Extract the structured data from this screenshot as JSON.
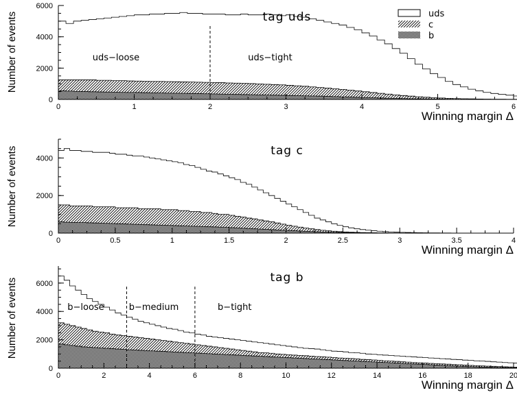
{
  "chart_data": [
    {
      "type": "bar",
      "title": "tag uds",
      "xlabel": "Winning margin Δ",
      "ylabel": "Number of events",
      "xlim": [
        0,
        6
      ],
      "ylim": [
        0,
        6000
      ],
      "xticks": [
        0,
        1,
        2,
        3,
        4,
        5,
        6
      ],
      "yticks": [
        0,
        2000,
        4000,
        6000
      ],
      "grid": false,
      "legend_position": "top-right",
      "legend": [
        "uds",
        "c",
        "b"
      ],
      "bin_width": 0.1,
      "cut_lines": [
        2.0
      ],
      "annotations": [
        {
          "text": "uds−loose",
          "x": 0.45,
          "y": 2700
        },
        {
          "text": "uds−tight",
          "x": 2.5,
          "y": 2700
        }
      ],
      "series": [
        {
          "name": "uds",
          "values": [
            5000,
            4850,
            5000,
            5050,
            5100,
            5150,
            5200,
            5250,
            5300,
            5350,
            5400,
            5400,
            5450,
            5450,
            5500,
            5500,
            5550,
            5500,
            5500,
            5450,
            5450,
            5450,
            5400,
            5400,
            5450,
            5400,
            5400,
            5450,
            5400,
            5350,
            5400,
            5300,
            5250,
            5150,
            5050,
            4950,
            4850,
            4750,
            4600,
            4450,
            4250,
            4050,
            3800,
            3550,
            3250,
            2950,
            2600,
            2250,
            1950,
            1650,
            1400,
            1150,
            950,
            800,
            650,
            550,
            450,
            380,
            320,
            270,
            220,
            180,
            150,
            130,
            110,
            95,
            80,
            70,
            60,
            50,
            45,
            40,
            35,
            30,
            25,
            20,
            18,
            15,
            12,
            10
          ]
        },
        {
          "name": "c",
          "values": [
            1250,
            1250,
            1250,
            1250,
            1250,
            1220,
            1220,
            1200,
            1200,
            1180,
            1170,
            1160,
            1150,
            1150,
            1140,
            1130,
            1120,
            1110,
            1100,
            1090,
            1080,
            1070,
            1050,
            1040,
            1030,
            1010,
            990,
            970,
            950,
            930,
            900,
            870,
            840,
            800,
            760,
            720,
            680,
            640,
            590,
            540,
            490,
            440,
            390,
            340,
            290,
            250,
            210,
            170,
            140,
            110,
            90,
            70,
            55,
            45,
            35,
            28,
            22,
            18,
            14,
            11,
            9,
            7,
            5,
            4,
            3,
            2,
            2,
            1,
            1,
            1
          ]
        },
        {
          "name": "b",
          "values": [
            550,
            530,
            510,
            500,
            490,
            480,
            470,
            460,
            450,
            445,
            440,
            430,
            420,
            410,
            400,
            395,
            390,
            380,
            370,
            360,
            350,
            340,
            330,
            320,
            310,
            300,
            290,
            280,
            270,
            260,
            250,
            240,
            230,
            220,
            210,
            195,
            180,
            165,
            150,
            135,
            120,
            105,
            90,
            78,
            66,
            55,
            45,
            37,
            30,
            24,
            19,
            15,
            12,
            9,
            7,
            5,
            4,
            3,
            2,
            2,
            1,
            1,
            1
          ]
        }
      ]
    },
    {
      "type": "bar",
      "title": "tag c",
      "xlabel": "Winning margin Δ",
      "ylabel": "Number of events",
      "xlim": [
        0,
        4
      ],
      "ylim": [
        0,
        5000
      ],
      "xticks": [
        0,
        0.5,
        1,
        1.5,
        2,
        2.5,
        3,
        3.5,
        4
      ],
      "yticks": [
        0,
        2000,
        4000
      ],
      "grid": false,
      "bin_width": 0.05,
      "series": [
        {
          "name": "uds",
          "values": [
            4400,
            4500,
            4400,
            4400,
            4350,
            4350,
            4300,
            4300,
            4300,
            4250,
            4200,
            4200,
            4150,
            4100,
            4100,
            4050,
            4000,
            3950,
            3900,
            3850,
            3800,
            3750,
            3650,
            3600,
            3500,
            3400,
            3300,
            3250,
            3150,
            3050,
            2950,
            2850,
            2700,
            2600,
            2450,
            2300,
            2150,
            2000,
            1850,
            1700,
            1550,
            1400,
            1250,
            1100,
            950,
            800,
            700,
            600,
            500,
            410,
            340,
            280,
            230,
            190,
            155,
            125,
            100,
            80,
            65,
            52,
            42,
            34,
            27,
            22,
            18,
            14,
            11,
            9,
            7,
            5,
            4,
            3,
            2,
            2,
            1,
            1,
            1,
            1,
            0,
            0
          ]
        },
        {
          "name": "c",
          "values": [
            1500,
            1500,
            1450,
            1450,
            1450,
            1450,
            1400,
            1400,
            1400,
            1400,
            1350,
            1350,
            1350,
            1350,
            1300,
            1300,
            1300,
            1300,
            1250,
            1250,
            1250,
            1200,
            1200,
            1150,
            1150,
            1100,
            1100,
            1050,
            1000,
            1000,
            950,
            900,
            850,
            800,
            760,
            700,
            650,
            600,
            540,
            480,
            420,
            370,
            320,
            270,
            230,
            190,
            150,
            120,
            100,
            80,
            65,
            50,
            40,
            32,
            25,
            20,
            15,
            12,
            9,
            7,
            5,
            4,
            3,
            2,
            2,
            1,
            1,
            1
          ]
        },
        {
          "name": "b",
          "values": [
            600,
            580,
            570,
            560,
            560,
            550,
            540,
            530,
            520,
            510,
            500,
            490,
            480,
            470,
            460,
            450,
            440,
            430,
            420,
            410,
            400,
            390,
            380,
            370,
            360,
            350,
            340,
            330,
            320,
            305,
            290,
            275,
            260,
            245,
            230,
            215,
            200,
            185,
            170,
            155,
            140,
            125,
            110,
            95,
            82,
            70,
            60,
            50,
            42,
            35,
            29,
            24,
            20,
            16,
            13,
            10,
            8,
            6,
            5,
            4,
            3,
            2,
            2,
            1,
            1
          ]
        }
      ]
    },
    {
      "type": "bar",
      "title": "tag b",
      "xlabel": "Winning margin Δ",
      "ylabel": "Number of events",
      "xlim": [
        0,
        20
      ],
      "ylim": [
        0,
        7200
      ],
      "xticks": [
        0,
        2,
        4,
        6,
        8,
        10,
        12,
        14,
        16,
        18,
        20
      ],
      "yticks": [
        0,
        2000,
        4000,
        6000
      ],
      "grid": false,
      "bin_width": 0.25,
      "cut_lines": [
        3,
        6
      ],
      "annotations": [
        {
          "text": "b−loose",
          "x": 0.4,
          "y": 4200
        },
        {
          "text": "b−medium",
          "x": 3.1,
          "y": 4200
        },
        {
          "text": "b−tight",
          "x": 7,
          "y": 4200
        }
      ],
      "series": [
        {
          "name": "uds",
          "values": [
            6500,
            6200,
            5800,
            5500,
            5200,
            4900,
            4700,
            4500,
            4300,
            4100,
            3900,
            3750,
            3600,
            3450,
            3300,
            3200,
            3100,
            3000,
            2900,
            2800,
            2750,
            2650,
            2550,
            2500,
            2400,
            2350,
            2250,
            2200,
            2150,
            2100,
            2050,
            2000,
            1950,
            1900,
            1850,
            1800,
            1750,
            1700,
            1650,
            1600,
            1550,
            1500,
            1450,
            1400,
            1380,
            1350,
            1300,
            1250,
            1200,
            1180,
            1150,
            1100,
            1080,
            1050,
            1000,
            980,
            950,
            920,
            900,
            870,
            850,
            820,
            800,
            770,
            750,
            720,
            700,
            670,
            650,
            620,
            600,
            570,
            550,
            520,
            500,
            480,
            450,
            430,
            400,
            380,
            360,
            340,
            320,
            300,
            280,
            260,
            240,
            220,
            200,
            180,
            160,
            140,
            120,
            100,
            80,
            65,
            50,
            40,
            30,
            20
          ]
        },
        {
          "name": "c",
          "values": [
            3200,
            3100,
            3000,
            2900,
            2800,
            2700,
            2600,
            2550,
            2500,
            2400,
            2350,
            2300,
            2250,
            2200,
            2150,
            2100,
            2050,
            2000,
            1950,
            1900,
            1850,
            1800,
            1750,
            1700,
            1650,
            1600,
            1550,
            1500,
            1450,
            1400,
            1350,
            1300,
            1250,
            1200,
            1150,
            1100,
            1080,
            1050,
            1000,
            980,
            950,
            920,
            900,
            880,
            850,
            820,
            800,
            780,
            750,
            720,
            700,
            680,
            650,
            620,
            600,
            580,
            550,
            520,
            500,
            480,
            450,
            430,
            400,
            380,
            360,
            340,
            320,
            300,
            280,
            260,
            240,
            220,
            200,
            180,
            160,
            145,
            130,
            115,
            100,
            90,
            80,
            70,
            60,
            50,
            42,
            35,
            28,
            22,
            17,
            13,
            10,
            7,
            5,
            4,
            3,
            2,
            1,
            1,
            0,
            0
          ]
        },
        {
          "name": "b",
          "values": [
            1700,
            1650,
            1600,
            1550,
            1500,
            1480,
            1450,
            1420,
            1400,
            1380,
            1350,
            1330,
            1300,
            1280,
            1260,
            1240,
            1220,
            1200,
            1180,
            1160,
            1140,
            1120,
            1100,
            1080,
            1060,
            1040,
            1020,
            1000,
            980,
            960,
            940,
            920,
            900,
            880,
            860,
            840,
            820,
            800,
            780,
            760,
            740,
            720,
            700,
            680,
            660,
            640,
            620,
            600,
            580,
            560,
            540,
            520,
            500,
            480,
            460,
            440,
            420,
            400,
            380,
            360,
            340,
            320,
            300,
            280,
            260,
            240,
            220,
            200,
            180,
            160,
            140,
            125,
            110,
            95,
            80,
            70,
            60,
            50,
            42,
            35,
            28,
            22,
            17,
            13,
            10,
            7,
            5,
            4,
            3,
            2,
            1,
            1,
            0,
            0,
            0,
            0,
            0,
            0,
            0,
            0
          ]
        }
      ]
    }
  ]
}
